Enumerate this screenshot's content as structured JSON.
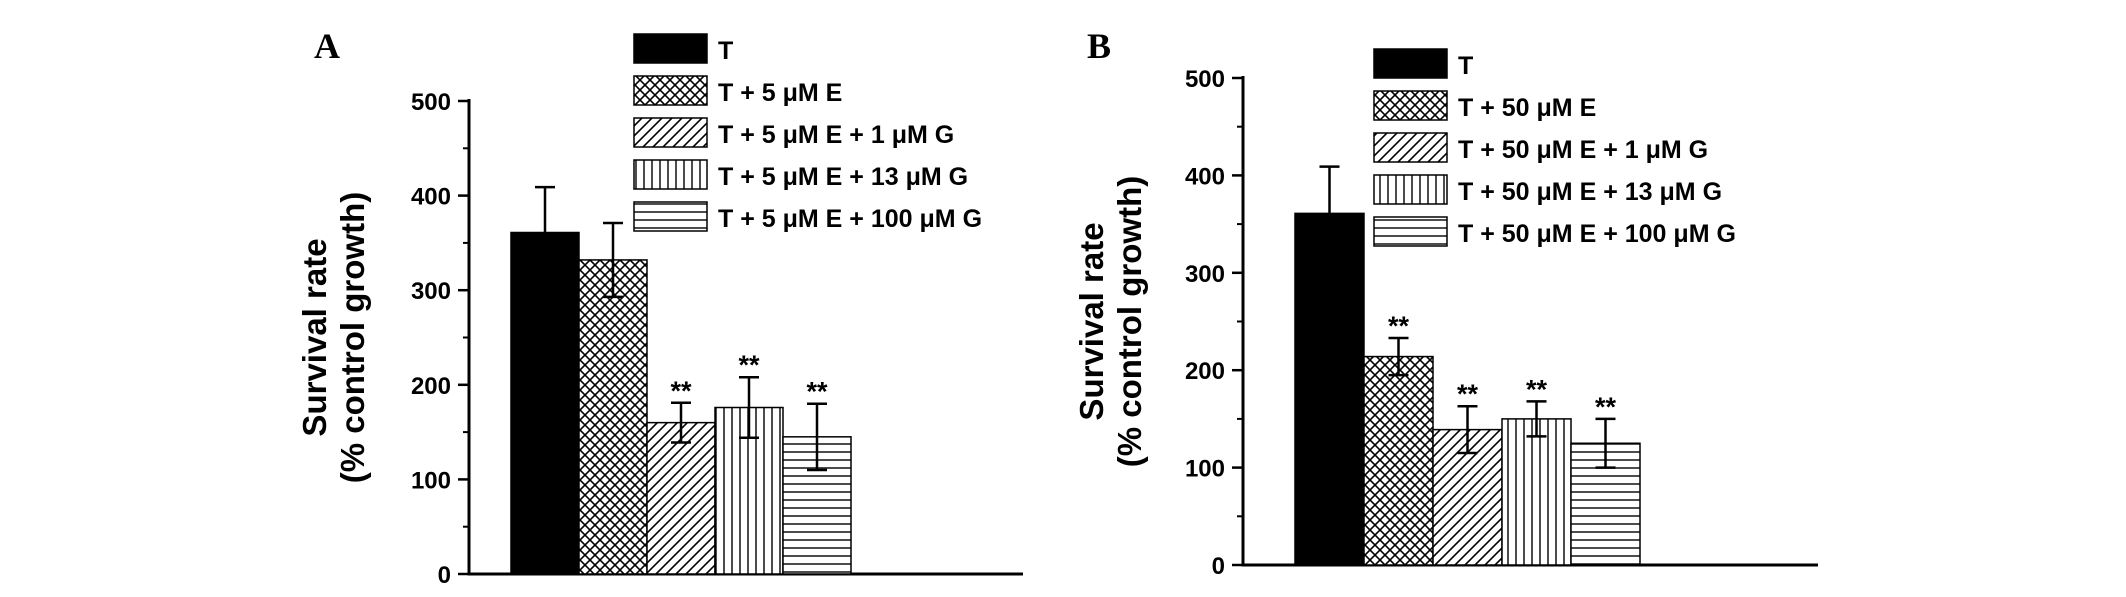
{
  "chart_data": [
    {
      "type": "bar",
      "panel_label": "A",
      "ylabel_lines": [
        "Survival rate",
        "(% control growth)"
      ],
      "ylim": [
        0,
        500
      ],
      "yticks": [
        0,
        100,
        200,
        300,
        400,
        500
      ],
      "series": [
        {
          "name": "T",
          "value": 361,
          "error": 48,
          "significance": "",
          "pattern": "solid"
        },
        {
          "name": "T + 5 μM E",
          "value": 332,
          "error": 39,
          "significance": "",
          "pattern": "crosshatch"
        },
        {
          "name": "T + 5 μM E + 1 μM G",
          "value": 160,
          "error": 21,
          "significance": "**",
          "pattern": "diagonal"
        },
        {
          "name": "T + 5 μM E + 13 μM G",
          "value": 176,
          "error": 32,
          "significance": "**",
          "pattern": "vertical"
        },
        {
          "name": "T + 5 μM E + 100 μM G",
          "value": 145,
          "error": 35,
          "significance": "**",
          "pattern": "horizontal"
        }
      ]
    },
    {
      "type": "bar",
      "panel_label": "B",
      "ylabel_lines": [
        "Survival rate",
        "(% control growth)"
      ],
      "ylim": [
        0,
        500
      ],
      "yticks": [
        0,
        100,
        200,
        300,
        400,
        500
      ],
      "series": [
        {
          "name": "T",
          "value": 361,
          "error": 48,
          "significance": "",
          "pattern": "solid"
        },
        {
          "name": "T + 50 μM E",
          "value": 214,
          "error": 19,
          "significance": "**",
          "pattern": "crosshatch"
        },
        {
          "name": "T + 50 μM E + 1 μM G",
          "value": 139,
          "error": 24,
          "significance": "**",
          "pattern": "diagonal"
        },
        {
          "name": "T + 50 μM E + 13 μM G",
          "value": 150,
          "error": 18,
          "significance": "**",
          "pattern": "vertical"
        },
        {
          "name": "T + 50 μM E + 100 μM G",
          "value": 125,
          "error": 25,
          "significance": "**",
          "pattern": "horizontal"
        }
      ]
    }
  ]
}
